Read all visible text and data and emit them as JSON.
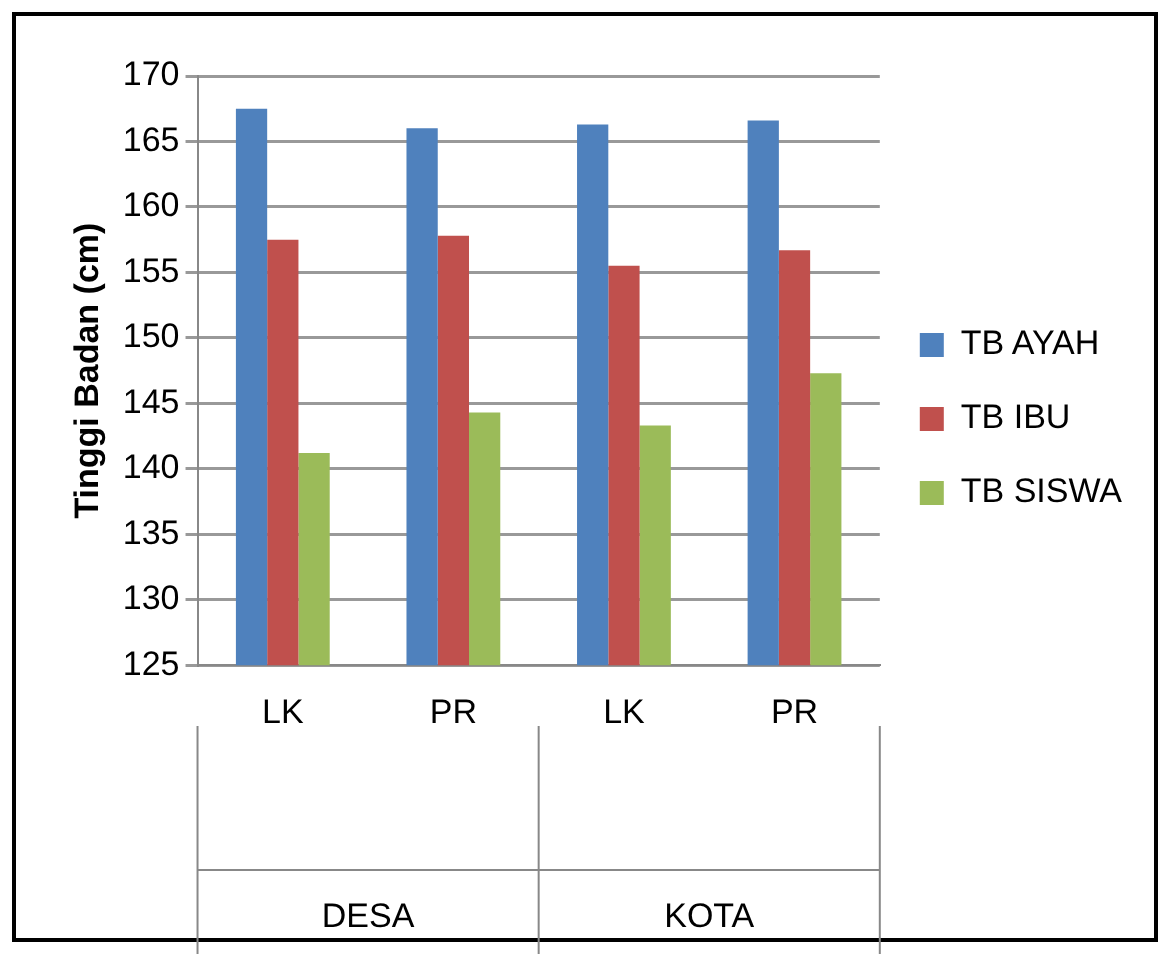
{
  "chart_data": {
    "type": "bar",
    "ylabel": "Tinggi Badan (cm)",
    "categories": [
      "LK",
      "PR",
      "LK",
      "PR"
    ],
    "series": [
      {
        "name": "TB AYAH",
        "color": "#4f81bd",
        "values": [
          167.5,
          166,
          166.3,
          166.6
        ]
      },
      {
        "name": "TB IBU",
        "color": "#c0504d",
        "values": [
          157.5,
          157.8,
          155.5,
          156.7
        ]
      },
      {
        "name": "TB SISWA",
        "color": "#9bbb59",
        "values": [
          141.2,
          144.3,
          143.3,
          147.3
        ]
      }
    ],
    "annotations": [
      "DESA",
      "KOTA"
    ],
    "ylim": [
      125,
      170
    ],
    "yticks": [
      125,
      130,
      135,
      140,
      145,
      150,
      155,
      160,
      165,
      170
    ],
    "grid": "y",
    "legend": "right"
  }
}
